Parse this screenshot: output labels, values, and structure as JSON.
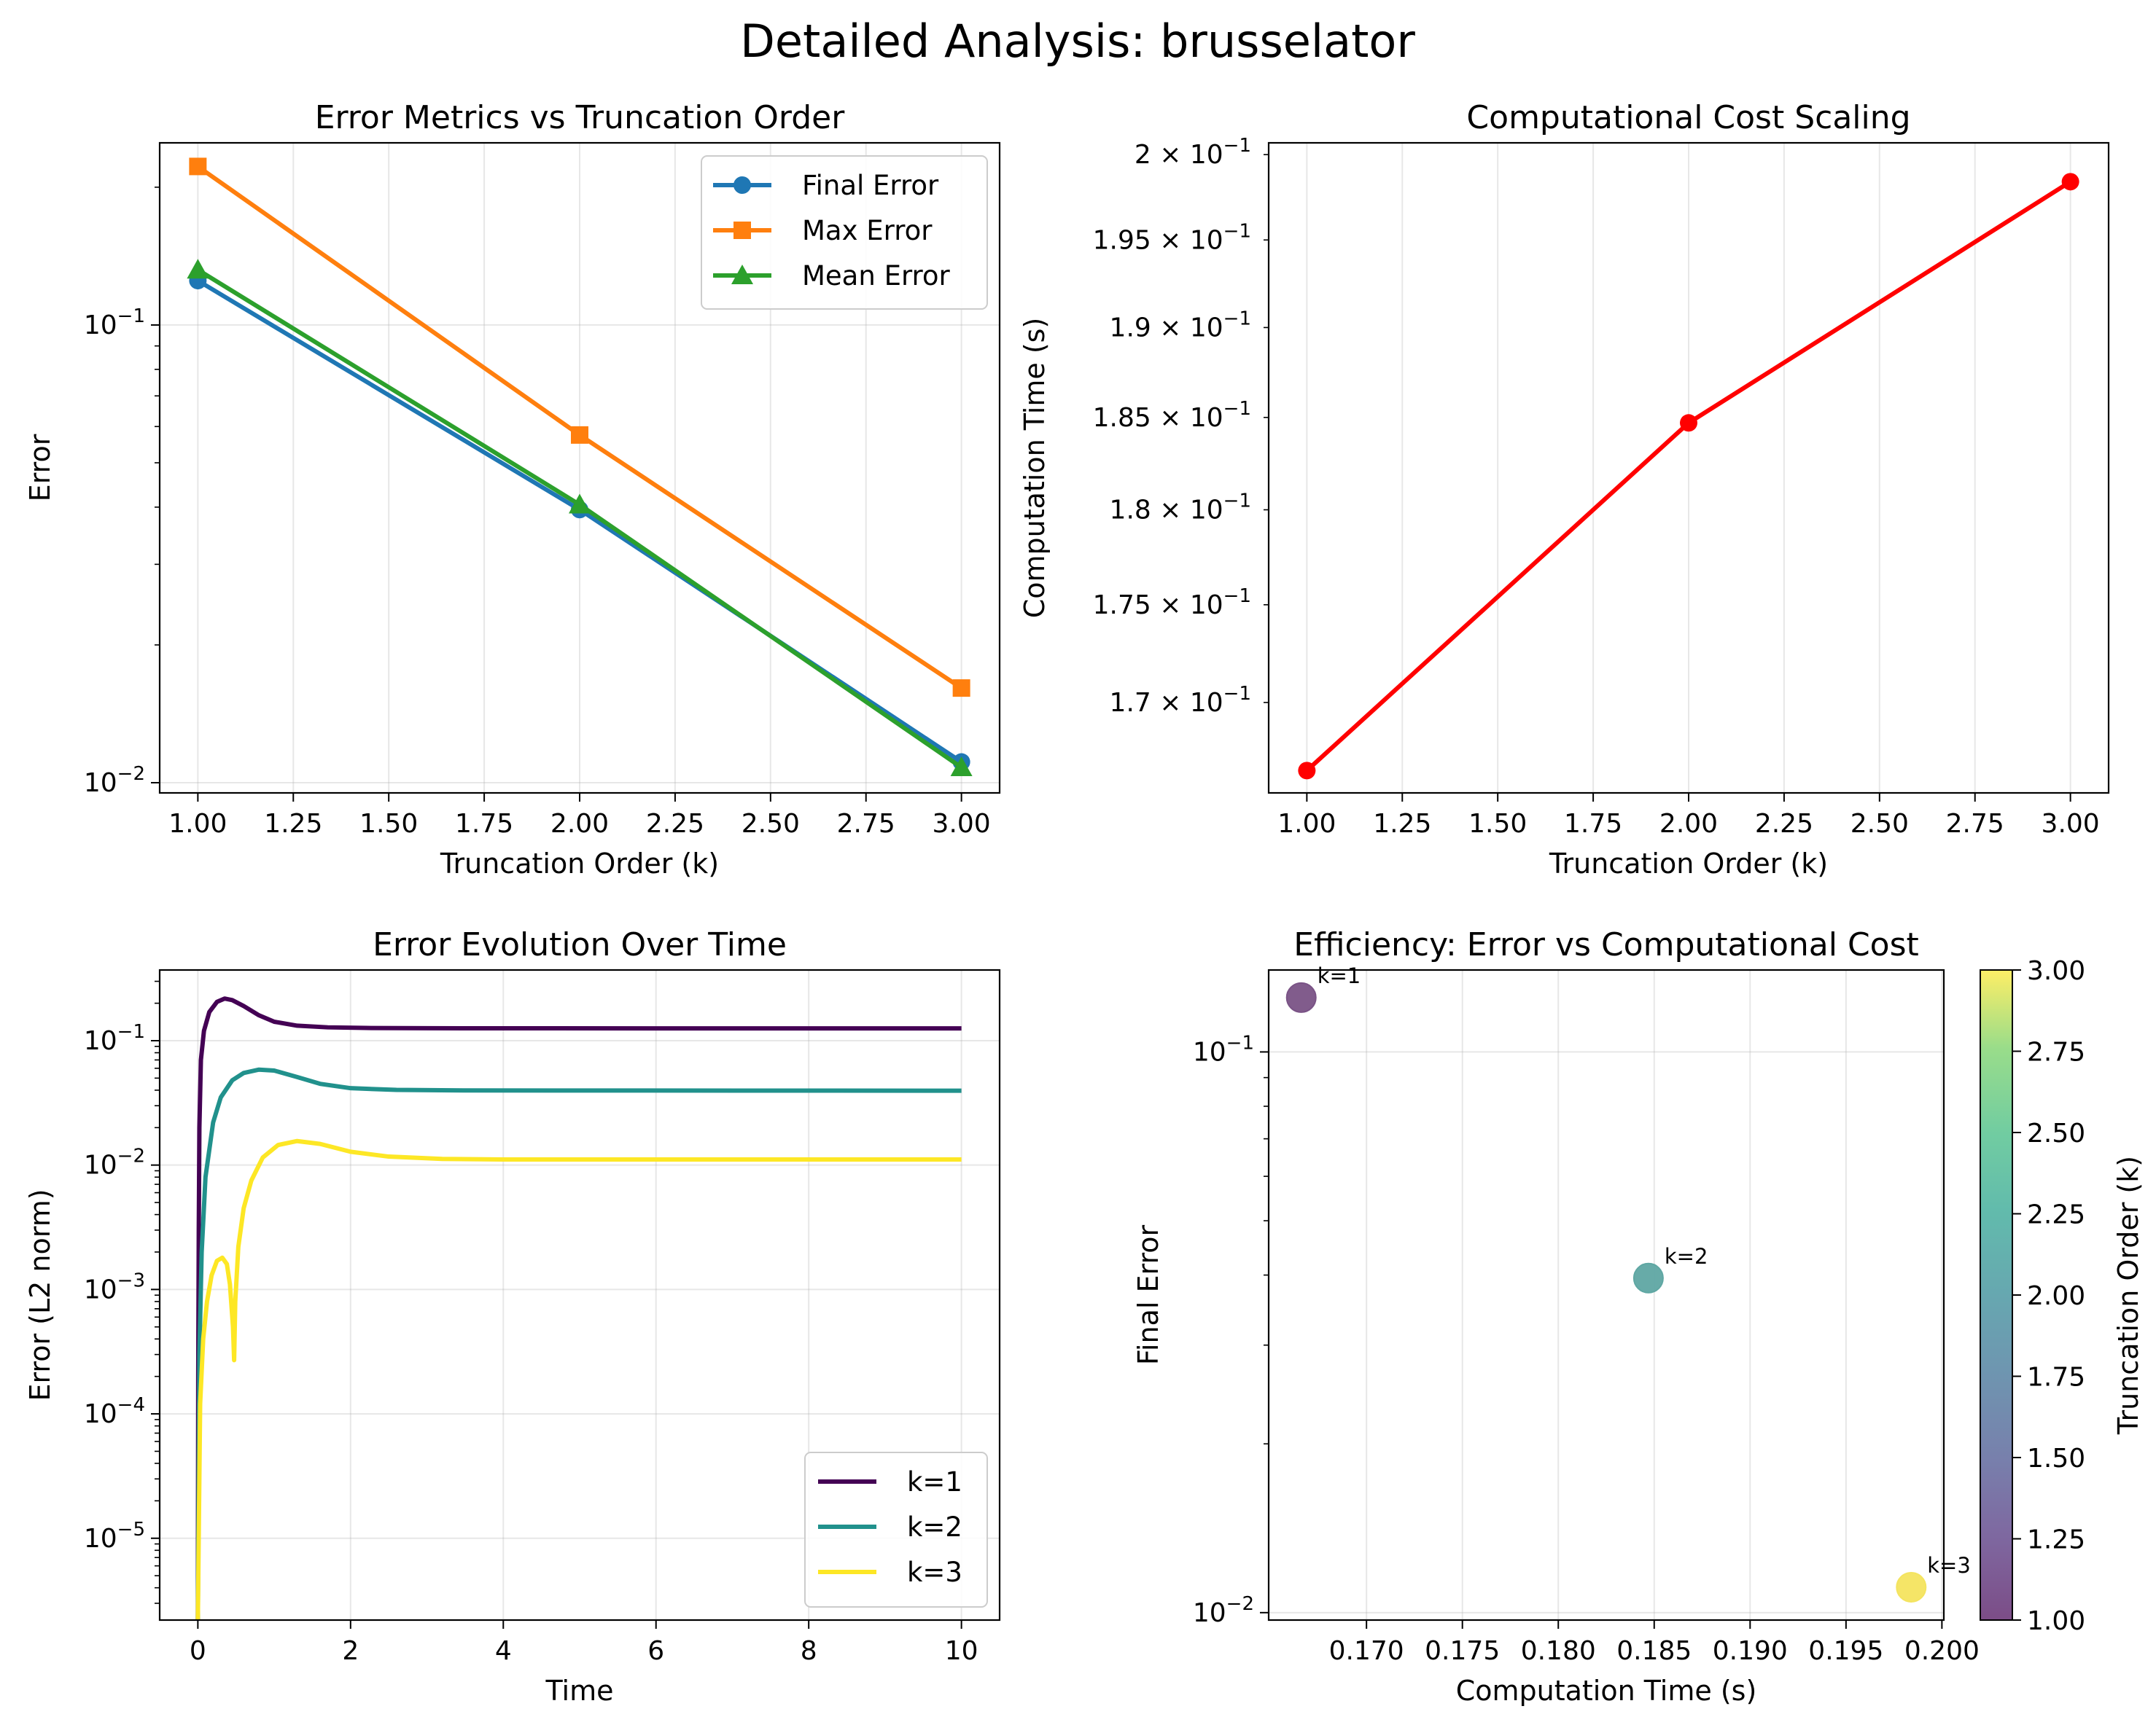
{
  "suptitle": "Detailed Analysis: brusselator",
  "chart_data": [
    {
      "type": "line",
      "title": "Error Metrics vs Truncation Order",
      "xlabel": "Truncation Order (k)",
      "ylabel": "Error",
      "yscale": "log",
      "xlim": [
        0.9,
        3.1
      ],
      "ylim": [
        0.0095,
        0.25
      ],
      "xticks": [
        "1.00",
        "1.25",
        "1.50",
        "1.75",
        "2.00",
        "2.25",
        "2.50",
        "2.75",
        "3.00"
      ],
      "yticks": [
        {
          "base": "10",
          "exp": "−1",
          "value": 0.1
        },
        {
          "base": "10",
          "exp": "−2",
          "value": 0.01
        }
      ],
      "grid": true,
      "legend_position": "upper right",
      "x": [
        1,
        2,
        3
      ],
      "series": [
        {
          "name": "Final Error",
          "marker": "circle",
          "color": "#1f77b4",
          "values": [
            0.125,
            0.0395,
            0.0111
          ]
        },
        {
          "name": "Max Error",
          "marker": "square",
          "color": "#ff7f0e",
          "values": [
            0.222,
            0.0575,
            0.0161
          ]
        },
        {
          "name": "Mean Error",
          "marker": "triangle",
          "color": "#2ca02c",
          "values": [
            0.132,
            0.0405,
            0.0108
          ]
        }
      ]
    },
    {
      "type": "line",
      "title": "Computational Cost Scaling",
      "xlabel": "Truncation Order (k)",
      "ylabel": "Computation Time (s)",
      "yscale": "log",
      "xlim": [
        0.9,
        3.1
      ],
      "ylim": [
        0.1655,
        0.2007
      ],
      "xticks": [
        "1.00",
        "1.25",
        "1.50",
        "1.75",
        "2.00",
        "2.25",
        "2.50",
        "2.75",
        "3.00"
      ],
      "yticks": [
        {
          "mant": "2",
          "exp": "−1",
          "value": 0.2
        },
        {
          "mant": "1.95",
          "exp": "−1",
          "value": 0.195
        },
        {
          "mant": "1.9",
          "exp": "−1",
          "value": 0.19
        },
        {
          "mant": "1.85",
          "exp": "−1",
          "value": 0.185
        },
        {
          "mant": "1.8",
          "exp": "−1",
          "value": 0.18
        },
        {
          "mant": "1.75",
          "exp": "−1",
          "value": 0.175
        },
        {
          "mant": "1.7",
          "exp": "−1",
          "value": 0.17
        }
      ],
      "grid": true,
      "x": [
        1,
        2,
        3
      ],
      "series": [
        {
          "color": "#ff0000",
          "marker": "circle",
          "values": [
            0.1666,
            0.1847,
            0.1984
          ]
        }
      ]
    },
    {
      "type": "line",
      "title": "Error Evolution Over Time",
      "xlabel": "Time",
      "ylabel": "Error (L2 norm)",
      "yscale": "log",
      "xlim": [
        -0.5,
        10.5
      ],
      "ylim": [
        2.2e-06,
        0.37
      ],
      "xticks": [
        0,
        2,
        4,
        6,
        8,
        10
      ],
      "yticks": [
        {
          "base": "10",
          "exp": "−1",
          "value": 0.1
        },
        {
          "base": "10",
          "exp": "−2",
          "value": 0.01
        },
        {
          "base": "10",
          "exp": "−3",
          "value": 0.001
        },
        {
          "base": "10",
          "exp": "−4",
          "value": 0.0001
        },
        {
          "base": "10",
          "exp": "−5",
          "value": 1e-05
        }
      ],
      "grid": true,
      "legend_position": "lower right",
      "series": [
        {
          "name": "k=1",
          "color": "#440154",
          "points": [
            [
              0,
              2.2e-06
            ],
            [
              0.005,
              0.0002
            ],
            [
              0.012,
              0.003
            ],
            [
              0.02,
              0.02
            ],
            [
              0.04,
              0.07
            ],
            [
              0.08,
              0.12
            ],
            [
              0.15,
              0.17
            ],
            [
              0.25,
              0.205
            ],
            [
              0.35,
              0.218
            ],
            [
              0.45,
              0.212
            ],
            [
              0.6,
              0.19
            ],
            [
              0.8,
              0.16
            ],
            [
              1.0,
              0.142
            ],
            [
              1.3,
              0.132
            ],
            [
              1.7,
              0.128
            ],
            [
              2.2,
              0.1265
            ],
            [
              3.0,
              0.126
            ],
            [
              4.0,
              0.1257
            ],
            [
              10,
              0.1255
            ]
          ]
        },
        {
          "name": "k=2",
          "color": "#21918c",
          "points": [
            [
              0,
              2.2e-06
            ],
            [
              0.02,
              0.0003
            ],
            [
              0.05,
              0.002
            ],
            [
              0.1,
              0.008
            ],
            [
              0.2,
              0.022
            ],
            [
              0.3,
              0.035
            ],
            [
              0.45,
              0.048
            ],
            [
              0.6,
              0.055
            ],
            [
              0.8,
              0.0585
            ],
            [
              1.0,
              0.0575
            ],
            [
              1.3,
              0.051
            ],
            [
              1.6,
              0.045
            ],
            [
              2.0,
              0.0415
            ],
            [
              2.6,
              0.0402
            ],
            [
              3.5,
              0.0398
            ],
            [
              10,
              0.0396
            ]
          ]
        },
        {
          "name": "k=3",
          "color": "#fde725",
          "points": [
            [
              0,
              2.2e-06
            ],
            [
              0.03,
              0.00012
            ],
            [
              0.07,
              0.0004
            ],
            [
              0.12,
              0.0008
            ],
            [
              0.18,
              0.0013
            ],
            [
              0.25,
              0.0017
            ],
            [
              0.32,
              0.0018
            ],
            [
              0.38,
              0.0016
            ],
            [
              0.42,
              0.0011
            ],
            [
              0.46,
              0.0005
            ],
            [
              0.475,
              0.00027
            ],
            [
              0.49,
              0.0008
            ],
            [
              0.53,
              0.0022
            ],
            [
              0.6,
              0.0045
            ],
            [
              0.7,
              0.0075
            ],
            [
              0.85,
              0.0115
            ],
            [
              1.05,
              0.0145
            ],
            [
              1.3,
              0.0156
            ],
            [
              1.6,
              0.0148
            ],
            [
              2.0,
              0.0128
            ],
            [
              2.5,
              0.0117
            ],
            [
              3.2,
              0.0112
            ],
            [
              4.0,
              0.0111
            ],
            [
              10,
              0.0111
            ]
          ]
        }
      ]
    },
    {
      "type": "scatter",
      "title": "Efficiency: Error vs Computational Cost",
      "xlabel": "Computation Time (s)",
      "ylabel": "Final Error",
      "yscale": "log",
      "xlim": [
        0.1649,
        0.2001
      ],
      "ylim": [
        0.0097,
        0.14
      ],
      "xticks": [
        "0.170",
        "0.175",
        "0.180",
        "0.185",
        "0.190",
        "0.195",
        "0.200"
      ],
      "xtick_values": [
        0.17,
        0.175,
        0.18,
        0.185,
        0.19,
        0.195,
        0.2
      ],
      "yticks": [
        {
          "base": "10",
          "exp": "−1",
          "value": 0.1
        },
        {
          "base": "10",
          "exp": "−2",
          "value": 0.01
        }
      ],
      "grid": true,
      "colorbar": {
        "label": "Truncation Order (k)",
        "range": [
          1.0,
          3.0
        ],
        "ticks": [
          "1.00",
          "1.25",
          "1.50",
          "1.75",
          "2.00",
          "2.25",
          "2.50",
          "2.75",
          "3.00"
        ],
        "colormap": "viridis"
      },
      "points": [
        {
          "x": 0.1666,
          "y": 0.125,
          "k": 1,
          "label": "k=1",
          "color": "#7a5386"
        },
        {
          "x": 0.1847,
          "y": 0.0395,
          "k": 2,
          "label": "k=2",
          "color": "#5fa7a3"
        },
        {
          "x": 0.1984,
          "y": 0.0111,
          "k": 3,
          "label": "k=3",
          "color": "#f4e45f"
        }
      ]
    }
  ]
}
